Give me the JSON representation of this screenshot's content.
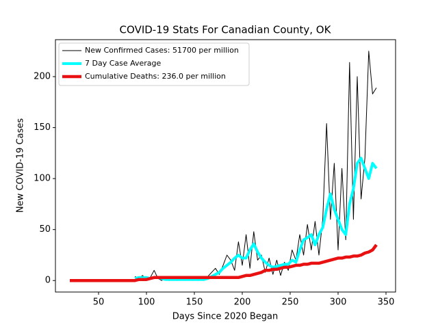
{
  "chart_data": {
    "type": "line",
    "title": "COVID-19 Stats For Canadian County, OK",
    "xlabel": "Days Since 2020 Began",
    "ylabel": "New COVID-19 Cases",
    "x": [
      20,
      24,
      28,
      32,
      36,
      40,
      44,
      48,
      52,
      56,
      60,
      64,
      68,
      72,
      76,
      80,
      84,
      88,
      92,
      96,
      100,
      104,
      108,
      112,
      116,
      120,
      124,
      128,
      132,
      136,
      140,
      144,
      148,
      152,
      156,
      160,
      164,
      168,
      172,
      176,
      180,
      184,
      188,
      192,
      196,
      200,
      204,
      208,
      212,
      216,
      220,
      224,
      228,
      232,
      236,
      240,
      244,
      248,
      252,
      256,
      260,
      264,
      268,
      272,
      276,
      280,
      284,
      288,
      292,
      296,
      300,
      304,
      308,
      312,
      316,
      320,
      324,
      328,
      332,
      336,
      340
    ],
    "series": [
      {
        "name": "New Confirmed Cases: 51700 per million",
        "color": "#000000",
        "width": 1,
        "values": [
          null,
          null,
          null,
          null,
          null,
          null,
          null,
          null,
          null,
          null,
          null,
          null,
          null,
          null,
          null,
          null,
          null,
          4,
          2,
          5,
          1,
          3,
          10,
          2,
          0,
          4,
          0,
          3,
          0,
          2,
          0,
          2,
          0,
          3,
          1,
          0,
          4,
          8,
          12,
          6,
          15,
          25,
          20,
          10,
          38,
          15,
          45,
          12,
          48,
          20,
          25,
          8,
          22,
          6,
          20,
          5,
          18,
          10,
          30,
          20,
          45,
          25,
          55,
          30,
          58,
          25,
          60,
          154,
          60,
          115,
          30,
          110,
          40,
          214,
          60,
          200,
          80,
          120,
          225,
          183,
          189
        ]
      },
      {
        "name": "7 Day Case Average",
        "color": "#00ffff",
        "width": 4,
        "values": [
          null,
          null,
          null,
          null,
          null,
          null,
          null,
          null,
          null,
          null,
          null,
          null,
          null,
          null,
          null,
          null,
          null,
          2,
          3,
          3,
          3,
          2,
          3,
          3,
          2,
          1,
          1,
          1,
          1,
          1,
          1,
          1,
          1,
          1,
          1,
          1,
          2,
          4,
          6,
          8,
          12,
          15,
          18,
          22,
          25,
          22,
          22,
          30,
          36,
          28,
          22,
          18,
          15,
          13,
          14,
          15,
          16,
          16,
          20,
          18,
          30,
          40,
          42,
          45,
          35,
          45,
          52,
          70,
          85,
          70,
          60,
          50,
          45,
          75,
          90,
          115,
          120,
          110,
          100,
          115,
          110
        ]
      },
      {
        "name": "Cumulative Deaths: 236.0 per million",
        "color": "#e81010",
        "width": 4.5,
        "values": [
          0,
          0,
          0,
          0,
          0,
          0,
          0,
          0,
          0,
          0,
          0,
          0,
          0,
          0,
          0,
          0,
          0,
          0,
          1,
          1,
          1,
          2,
          3,
          3,
          3,
          3,
          3,
          3,
          3,
          3,
          3,
          3,
          3,
          3,
          3,
          3,
          3,
          3,
          3,
          3,
          3,
          3,
          3,
          3,
          3,
          4,
          5,
          5,
          6,
          7,
          8,
          10,
          10,
          11,
          11,
          12,
          13,
          13,
          14,
          15,
          15,
          16,
          16,
          17,
          17,
          17,
          18,
          19,
          20,
          21,
          22,
          22,
          23,
          23,
          24,
          24,
          25,
          27,
          28,
          30,
          35
        ]
      }
    ],
    "xlim": [
      5,
      360
    ],
    "ylim": [
      -11.25,
      236.25
    ],
    "xticks": [
      50,
      100,
      150,
      200,
      250,
      300,
      350
    ],
    "yticks": [
      0,
      50,
      100,
      150,
      200
    ],
    "legend": "upper left",
    "grid": false
  }
}
